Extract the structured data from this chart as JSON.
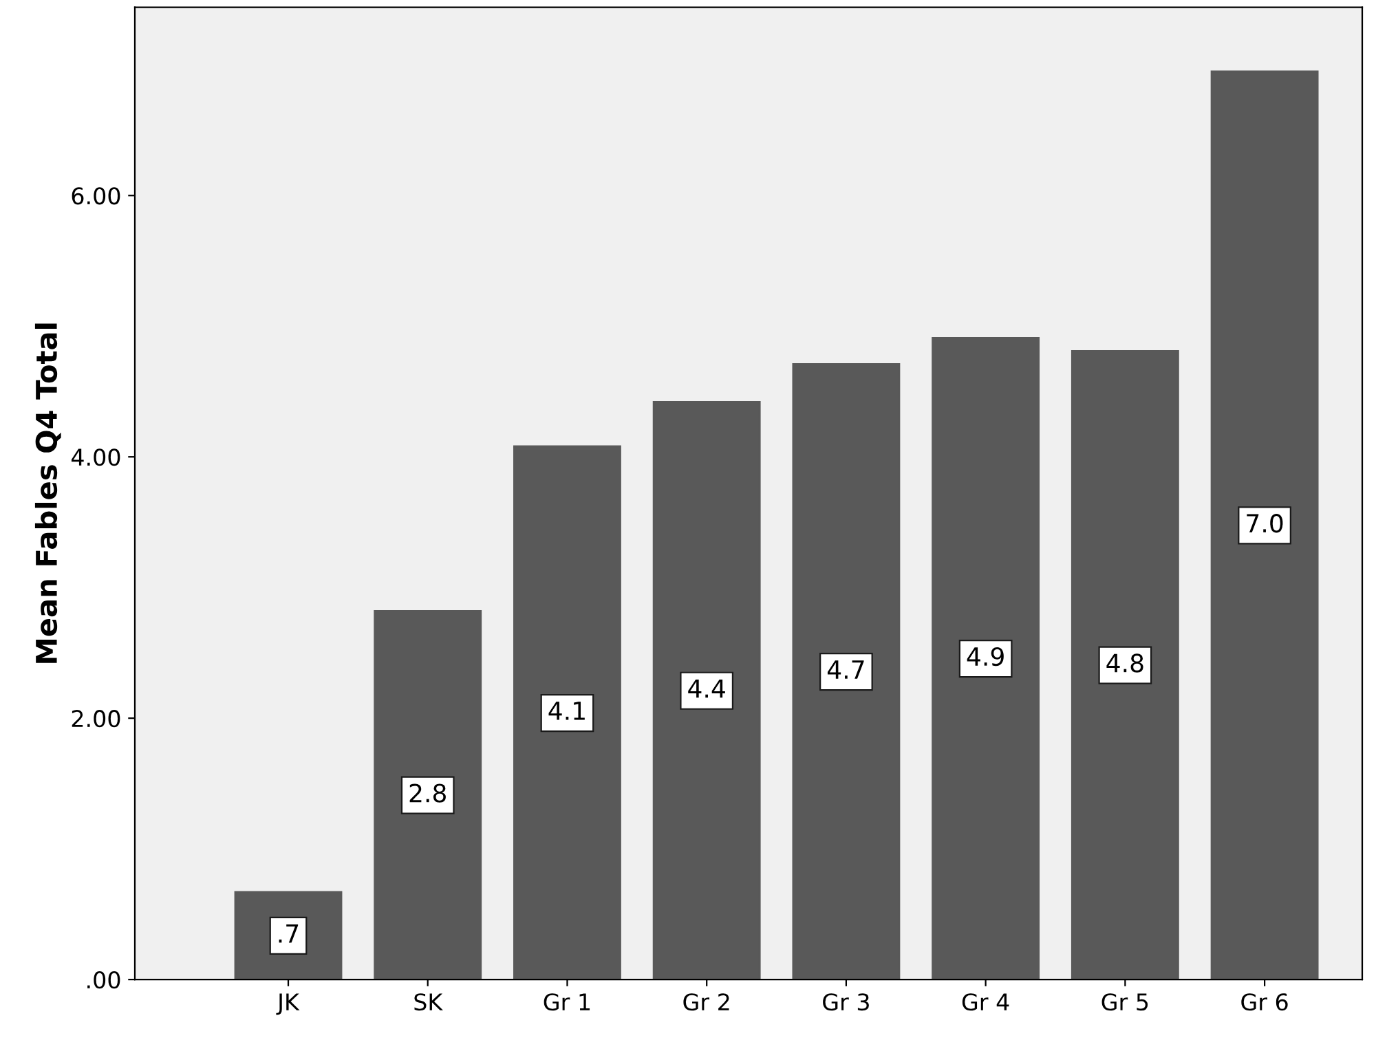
{
  "chart_data": {
    "type": "bar",
    "ylabel": "Mean Fables Q4 Total",
    "categories": [
      "JK",
      "SK",
      "Gr 1",
      "Gr 2",
      "Gr 3",
      "Gr 4",
      "Gr 5",
      "Gr 6"
    ],
    "values": [
      0.67,
      2.82,
      4.08,
      4.42,
      4.71,
      4.91,
      4.81,
      6.95
    ],
    "value_labels": [
      ".7",
      "2.8",
      "4.1",
      "4.4",
      "4.7",
      "4.9",
      "4.8",
      "7.0"
    ],
    "color": "#595959",
    "ylim": [
      0,
      7.44
    ],
    "yticks": [
      {
        "value": 0,
        "label": ".00"
      },
      {
        "value": 2,
        "label": "2.00"
      },
      {
        "value": 4,
        "label": "4.00"
      },
      {
        "value": 6,
        "label": "6.00"
      }
    ],
    "grid": false
  }
}
